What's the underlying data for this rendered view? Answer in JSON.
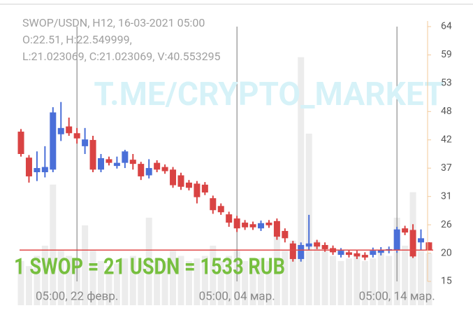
{
  "chart_data": {
    "type": "candlestick",
    "title": "SWOP/USDN, H12, 16-03-2021 05:00",
    "info": [
      "O:22.51, H:22.549999,",
      "L:21.023069, C:21.023069, V:40.553295"
    ],
    "watermark": "T.ME/CRYPTO_MARKET",
    "annotation": "1 SWOP = 21 USDN = 1533 RUB",
    "categories": [
      null,
      null,
      null,
      null,
      null,
      null,
      null,
      "05:00, 22 февр.",
      null,
      null,
      null,
      null,
      null,
      null,
      null,
      null,
      null,
      null,
      null,
      null,
      null,
      null,
      null,
      null,
      null,
      null,
      null,
      "05:00, 04 мар.",
      null,
      null,
      null,
      null,
      null,
      null,
      null,
      null,
      null,
      null,
      null,
      null,
      null,
      null,
      null,
      null,
      null,
      null,
      null,
      "05:00, 14 мар.",
      null,
      null,
      null,
      null
    ],
    "open": [
      43.8,
      38.8,
      36,
      36,
      36.5,
      43.3,
      44.8,
      43.5,
      41,
      42.2,
      36.5,
      38.5,
      37.2,
      37.8,
      38.4,
      37.6,
      35.4,
      37.8,
      37,
      36.5,
      35.4,
      34,
      33.8,
      33.6,
      31,
      29.5,
      27.9,
      27.1,
      26.3,
      26,
      25.2,
      26.3,
      26.6,
      24.7,
      22.3,
      19.3,
      21.7,
      22.5,
      22,
      21.4,
      20.1,
      20.6,
      20.4,
      20.1,
      20.1,
      20.5,
      20.9,
      21,
      25.2,
      24.9,
      22.5,
      22.51
    ],
    "high": [
      44.3,
      39.3,
      40,
      41,
      48.5,
      49.5,
      46.5,
      44.5,
      44.5,
      43,
      39.5,
      39,
      39,
      40.3,
      39.5,
      38,
      38.5,
      38.3,
      37.5,
      37,
      35.9,
      34.5,
      34.3,
      34.1,
      31.5,
      30,
      28.4,
      27.6,
      26.8,
      26.5,
      26.7,
      26.8,
      27.1,
      25.2,
      22.8,
      22.5,
      27.8,
      23,
      22.5,
      21.9,
      21.4,
      21.1,
      20.9,
      20.6,
      21.5,
      21.6,
      21.7,
      25.5,
      25.7,
      26,
      25,
      22.549999
    ],
    "low": [
      39,
      34,
      34.3,
      35,
      36,
      42,
      43,
      41.5,
      39.5,
      36,
      36,
      37.3,
      36.7,
      36.8,
      36.5,
      34.5,
      34.8,
      36,
      35.7,
      33,
      32.6,
      32.5,
      30,
      31.6,
      28,
      27.8,
      25.5,
      24.5,
      24.9,
      24.9,
      24.7,
      25.3,
      23,
      22.5,
      18.8,
      18.8,
      21,
      21.2,
      20.7,
      20.1,
      19.6,
      19.6,
      19.3,
      19.1,
      19.6,
      20,
      20.4,
      20.5,
      23.9,
      19.5,
      21,
      21.023069
    ],
    "close": [
      39.5,
      35.2,
      36.8,
      37,
      47.5,
      44.5,
      43.5,
      42.5,
      42.3,
      36.5,
      38.7,
      37.8,
      37.8,
      40,
      37.6,
      35.2,
      36.8,
      36.5,
      36.2,
      33.5,
      33.2,
      33,
      31.2,
      32.1,
      28.7,
      28.3,
      26.3,
      25.2,
      25.4,
      25.4,
      26.2,
      25.8,
      23.6,
      23.3,
      19.3,
      22,
      22.3,
      21.7,
      21.2,
      20.6,
      20.9,
      20.1,
      19.8,
      19.6,
      20.9,
      21.1,
      21.2,
      25,
      24.4,
      19.8,
      23.3,
      21.023069
    ],
    "volume": [
      8,
      6,
      10,
      14,
      38,
      12,
      10,
      9,
      22,
      12,
      8,
      6,
      7,
      9,
      10,
      8,
      25,
      9,
      8,
      12,
      10,
      8,
      9,
      10,
      14,
      8,
      10,
      12,
      8,
      7,
      9,
      8,
      18,
      12,
      16,
      88,
      58,
      16,
      12,
      10,
      8,
      9,
      10,
      8,
      9,
      12,
      10,
      25,
      14,
      35,
      12,
      11
    ],
    "vlim": [
      0,
      100
    ],
    "up_color": "#4a6fd8",
    "down_color": "#d94343",
    "volume_color": "#ececec",
    "ylim": [
      15,
      64
    ],
    "yticks": [
      15,
      {
        "value": 20.44,
        "label": "20"
      },
      {
        "value": 25.89,
        "label": "26"
      },
      {
        "value": 31.33,
        "label": "31"
      },
      {
        "value": 36.78,
        "label": "37"
      },
      {
        "value": 42.22,
        "label": "42"
      },
      {
        "value": 47.67,
        "label": "48"
      },
      {
        "value": 53.11,
        "label": "53"
      },
      {
        "value": 58.56,
        "label": "59"
      },
      64
    ]
  }
}
